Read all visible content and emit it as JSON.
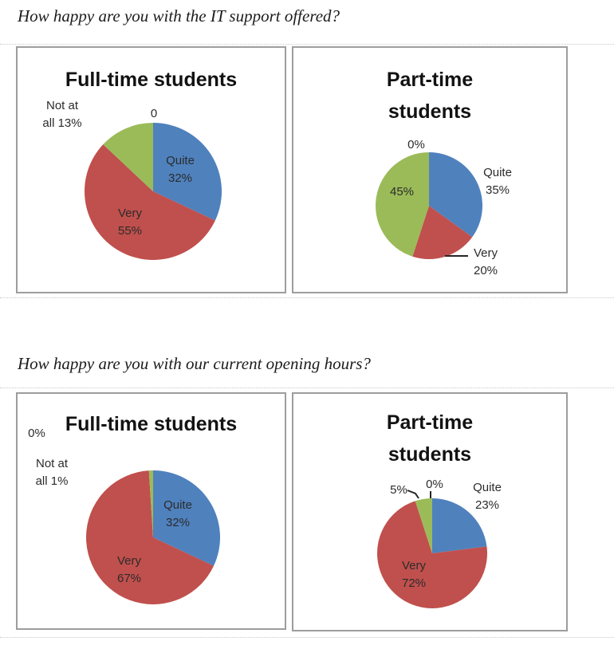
{
  "questions": {
    "q1": "How happy are you with the IT support offered?",
    "q2": "How happy are you with our current opening hours?"
  },
  "colors": {
    "quite": "#4F81BD",
    "very": "#C0504D",
    "not_at_all": "#9BBB59",
    "frame": "#9d9d9d"
  },
  "chart_data": [
    {
      "type": "pie",
      "question": "How happy are you with the IT support offered?",
      "title": "Full-time students",
      "slices_clockwise_from_top": [
        {
          "label": "Quite 32%",
          "value": 32,
          "color_key": "quite"
        },
        {
          "label": "Very 55%",
          "value": 55,
          "color_key": "very"
        },
        {
          "label": "Not at all 13%",
          "value": 13,
          "color_key": "not_at_all"
        },
        {
          "label": "0",
          "value": 0,
          "color_key": "none"
        }
      ],
      "labels": {
        "zero": "0",
        "not_at_all": [
          "Not at",
          "all 13%"
        ],
        "quite": [
          "Quite",
          "32%"
        ],
        "very": [
          "Very",
          "55%"
        ]
      }
    },
    {
      "type": "pie",
      "question": "How happy are you with the IT support offered?",
      "title": "Part-time students",
      "slices_clockwise_from_top": [
        {
          "label": "Quite 35%",
          "value": 35,
          "color_key": "quite"
        },
        {
          "label": "Very 20%",
          "value": 20,
          "color_key": "very"
        },
        {
          "label": "45%",
          "value": 45,
          "color_key": "not_at_all"
        },
        {
          "label": "0%",
          "value": 0,
          "color_key": "none"
        }
      ],
      "labels": {
        "zero": "0%",
        "not_at_all": [
          "45%"
        ],
        "quite": [
          "Quite",
          "35%"
        ],
        "very": [
          "Very",
          "20%"
        ]
      }
    },
    {
      "type": "pie",
      "question": "How happy are you with our current opening hours?",
      "title": "Full-time students",
      "slices_clockwise_from_top": [
        {
          "label": "Quite 32%",
          "value": 32,
          "color_key": "quite"
        },
        {
          "label": "Very 67%",
          "value": 67,
          "color_key": "very"
        },
        {
          "label": "Not at all 1%",
          "value": 1,
          "color_key": "not_at_all"
        },
        {
          "label": "0%",
          "value": 0,
          "color_key": "none"
        }
      ],
      "labels": {
        "zero": "0%",
        "not_at_all": [
          "Not at",
          "all 1%"
        ],
        "quite": [
          "Quite",
          "32%"
        ],
        "very": [
          "Very",
          "67%"
        ]
      }
    },
    {
      "type": "pie",
      "question": "How happy are you with our current opening hours?",
      "title": "Part-time students",
      "slices_clockwise_from_top": [
        {
          "label": "Quite 23%",
          "value": 23,
          "color_key": "quite"
        },
        {
          "label": "Very 72%",
          "value": 72,
          "color_key": "very"
        },
        {
          "label": "5%",
          "value": 5,
          "color_key": "not_at_all"
        },
        {
          "label": "0%",
          "value": 0,
          "color_key": "none"
        }
      ],
      "labels": {
        "zero": "0%",
        "not_at_all": [
          "5%"
        ],
        "quite": [
          "Quite",
          "23%"
        ],
        "very": [
          "Very",
          "72%"
        ]
      }
    }
  ]
}
